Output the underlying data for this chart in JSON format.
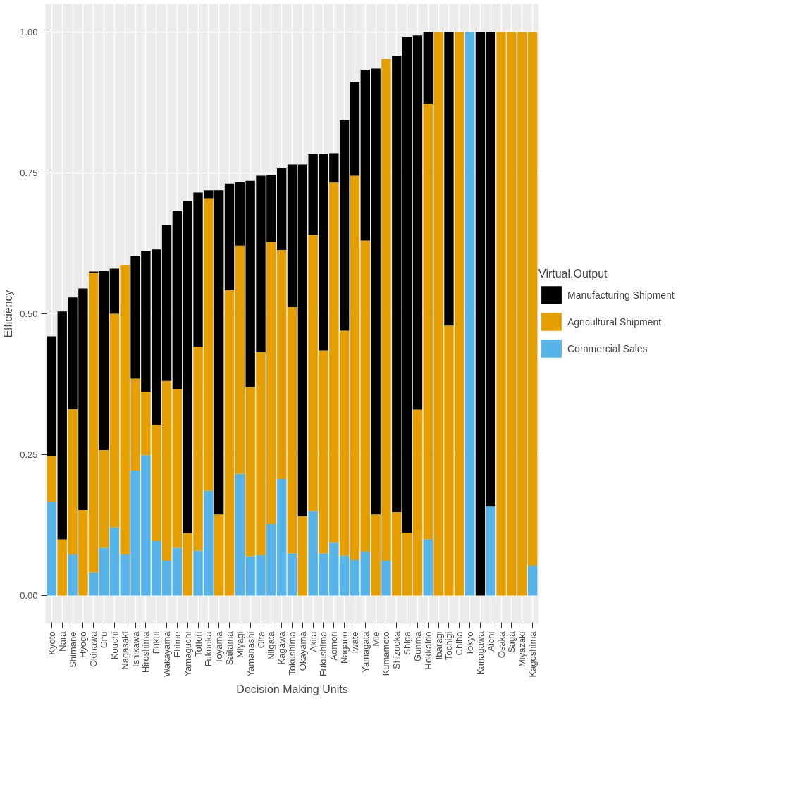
{
  "chart_data": {
    "type": "bar",
    "stacked": true,
    "xlabel": "Decision Making Units",
    "ylabel": "Efficiency",
    "legend_title": "Virtual.Output",
    "legend": "right",
    "grid": true,
    "categories": [
      "Kyoto",
      "Nara",
      "Shimane",
      "Hyogo",
      "Okinawa",
      "Gifu",
      "Kouchi",
      "Nagasaki",
      "Ishikawa",
      "Hiroshima",
      "Fukui",
      "Wakayama",
      "Ehime",
      "Yamaguchi",
      "Tottori",
      "Fukuoka",
      "Toyama",
      "Saitama",
      "Miyagi",
      "Yamanashi",
      "Oita",
      "Niigata",
      "Kagawa",
      "Tokushima",
      "Okayama",
      "Akita",
      "Fukushima",
      "Aomori",
      "Nagano",
      "Iwate",
      "Yamagata",
      "Mie",
      "Kumamoto",
      "Shizuoka",
      "Shiga",
      "Gunma",
      "Hokkaido",
      "Ibaragi",
      "Tochigi",
      "Chiba",
      "Tokyo",
      "Kanagawa",
      "Aichi",
      "Osaka",
      "Saga",
      "Miyazaki",
      "Kagoshima"
    ],
    "ylim": [
      -0.05,
      1.05
    ],
    "yticks": [
      {
        "value": 0,
        "label": "0.00"
      },
      {
        "value": 0.25,
        "label": "0.25"
      },
      {
        "value": 0.5,
        "label": "0.50"
      },
      {
        "value": 0.75,
        "label": "0.75"
      },
      {
        "value": 1,
        "label": "1.00"
      }
    ],
    "series": [
      {
        "name": "Commercial Sales",
        "color": "#56b4e9",
        "values": [
          0.167,
          0,
          0.073,
          0,
          0.041,
          0.085,
          0.121,
          0.073,
          0.222,
          0.249,
          0.097,
          0.062,
          0.085,
          0,
          0.08,
          0.186,
          0,
          0,
          0.216,
          0.07,
          0.072,
          0.127,
          0.207,
          0.075,
          0,
          0.15,
          0.075,
          0.094,
          0.071,
          0.063,
          0.078,
          0,
          0.062,
          0,
          0,
          0,
          0.1,
          0,
          0,
          0,
          1,
          0,
          0.159,
          0,
          0,
          0,
          0.053
        ]
      },
      {
        "name": "Agricultural Shipment",
        "color": "#e69f00",
        "values": [
          0.08,
          0.1,
          0.258,
          0.152,
          0.532,
          0.173,
          0.379,
          0.514,
          0.163,
          0.113,
          0.206,
          0.319,
          0.282,
          0.111,
          0.362,
          0.519,
          0.144,
          0.542,
          0.405,
          0.3,
          0.36,
          0.5,
          0.406,
          0.437,
          0.141,
          0.49,
          0.36,
          0.639,
          0.399,
          0.682,
          0.552,
          0.144,
          0.89,
          0.148,
          0.112,
          0.33,
          0.773,
          1,
          0.479,
          1,
          0,
          0,
          0,
          1,
          1,
          1,
          0.947
        ]
      },
      {
        "name": "Manufacturing Shipment",
        "color": "#000000",
        "values": [
          0.213,
          0.404,
          0.198,
          0.393,
          0.002,
          0.318,
          0.08,
          0,
          0.218,
          0.249,
          0.311,
          0.276,
          0.316,
          0.589,
          0.273,
          0.014,
          0.575,
          0.189,
          0.112,
          0.366,
          0.313,
          0.119,
          0.145,
          0.253,
          0.624,
          0.143,
          0.349,
          0.052,
          0.373,
          0.166,
          0.303,
          0.791,
          0,
          0.81,
          0.879,
          0.664,
          0.127,
          0,
          0.521,
          0,
          0,
          1,
          0.841,
          0,
          0,
          0,
          0
        ]
      }
    ]
  }
}
